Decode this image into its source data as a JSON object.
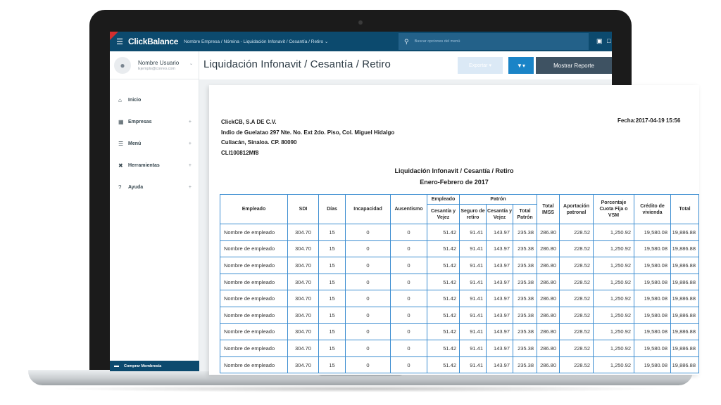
{
  "topbar": {
    "brand": "ClickBalance",
    "breadcrumb": "Nombre Empresa / Nómina - Liquidación Infonavit / Cesantía / Retiro",
    "search_placeholder": "Buscar opciones del menú"
  },
  "sidebar": {
    "user_name": "Nombre Usuario",
    "user_email": "Ejemplo@correo.com",
    "items": [
      {
        "label": "Inicio",
        "icon": "home-icon",
        "expandable": false
      },
      {
        "label": "Empresas",
        "icon": "building-icon",
        "expandable": true
      },
      {
        "label": "Menú",
        "icon": "list-icon",
        "expandable": true
      },
      {
        "label": "Herramientas",
        "icon": "tools-icon",
        "expandable": true
      },
      {
        "label": "Ayuda",
        "icon": "help-icon",
        "expandable": true
      }
    ],
    "membership_label": "Comprar Membresía"
  },
  "header": {
    "title": "Liquidación Infonavit / Cesantía / Retiro",
    "export_label": "Exportar",
    "show_report_label": "Mostrar Reporte"
  },
  "report": {
    "company_lines": [
      "ClickCB, S.A DE C.V.",
      "Indio de Guelatao 297 Nte. No. Ext 2do. Piso, Col. Miguel Hidalgo",
      "Culiacán, Sinaloa. CP. 80090",
      "CLI100812Mf8"
    ],
    "fecha": "Fecha:2017-04-19 15:56",
    "title": "Liquidación Infonavit / Cesantía / Retiro",
    "period": "Enero-Febrero de 2017",
    "group_headers": {
      "empleado": "Empleado",
      "patron": "Patrón"
    },
    "columns": {
      "empleado": "Empleado",
      "sdi": "SDI",
      "dias": "Días",
      "incapacidad": "Incapacidad",
      "ausentismo": "Ausentismo",
      "emp_cesantia": "Cesantía y Vejez",
      "pat_seguro": "Seguro de retiro",
      "pat_cesantia": "Cesantía y Vejez",
      "pat_total": "Total Patrón",
      "total_imss": "Total IMSS",
      "aportacion": "Aportación patronal",
      "porcentaje": "Porcentaje Cuota Fija o VSM",
      "credito": "Crédito de vivienda",
      "total": "Total"
    },
    "rows": [
      {
        "empleado": "Nombre de empleado",
        "sdi": "304.70",
        "dias": "15",
        "incapacidad": "0",
        "ausentismo": "0",
        "emp_cesantia": "51.42",
        "pat_seguro": "91.41",
        "pat_cesantia": "143.97",
        "pat_total": "235.38",
        "total_imss": "286.80",
        "aportacion": "228.52",
        "porcentaje": "1,250.92",
        "credito": "19,580.08",
        "total": "19,886.88"
      },
      {
        "empleado": "Nombre de empleado",
        "sdi": "304.70",
        "dias": "15",
        "incapacidad": "0",
        "ausentismo": "0",
        "emp_cesantia": "51.42",
        "pat_seguro": "91.41",
        "pat_cesantia": "143.97",
        "pat_total": "235.38",
        "total_imss": "286.80",
        "aportacion": "228.52",
        "porcentaje": "1,250.92",
        "credito": "19,580.08",
        "total": "19,886.88"
      },
      {
        "empleado": "Nombre de empleado",
        "sdi": "304.70",
        "dias": "15",
        "incapacidad": "0",
        "ausentismo": "0",
        "emp_cesantia": "51.42",
        "pat_seguro": "91.41",
        "pat_cesantia": "143.97",
        "pat_total": "235.38",
        "total_imss": "286.80",
        "aportacion": "228.52",
        "porcentaje": "1,250.92",
        "credito": "19,580.08",
        "total": "19,886.88"
      },
      {
        "empleado": "Nombre de empleado",
        "sdi": "304.70",
        "dias": "15",
        "incapacidad": "0",
        "ausentismo": "0",
        "emp_cesantia": "51.42",
        "pat_seguro": "91.41",
        "pat_cesantia": "143.97",
        "pat_total": "235.38",
        "total_imss": "286.80",
        "aportacion": "228.52",
        "porcentaje": "1,250.92",
        "credito": "19,580.08",
        "total": "19,886.88"
      },
      {
        "empleado": "Nombre de empleado",
        "sdi": "304.70",
        "dias": "15",
        "incapacidad": "0",
        "ausentismo": "0",
        "emp_cesantia": "51.42",
        "pat_seguro": "91.41",
        "pat_cesantia": "143.97",
        "pat_total": "235.38",
        "total_imss": "286.80",
        "aportacion": "228.52",
        "porcentaje": "1,250.92",
        "credito": "19,580.08",
        "total": "19,886.88"
      },
      {
        "empleado": "Nombre de empleado",
        "sdi": "304.70",
        "dias": "15",
        "incapacidad": "0",
        "ausentismo": "0",
        "emp_cesantia": "51.42",
        "pat_seguro": "91.41",
        "pat_cesantia": "143.97",
        "pat_total": "235.38",
        "total_imss": "286.80",
        "aportacion": "228.52",
        "porcentaje": "1,250.92",
        "credito": "19,580.08",
        "total": "19,886.88"
      },
      {
        "empleado": "Nombre de empleado",
        "sdi": "304.70",
        "dias": "15",
        "incapacidad": "0",
        "ausentismo": "0",
        "emp_cesantia": "51.42",
        "pat_seguro": "91.41",
        "pat_cesantia": "143.97",
        "pat_total": "235.38",
        "total_imss": "286.80",
        "aportacion": "228.52",
        "porcentaje": "1,250.92",
        "credito": "19,580.08",
        "total": "19,886.88"
      },
      {
        "empleado": "Nombre de empleado",
        "sdi": "304.70",
        "dias": "15",
        "incapacidad": "0",
        "ausentismo": "0",
        "emp_cesantia": "51.42",
        "pat_seguro": "91.41",
        "pat_cesantia": "143.97",
        "pat_total": "235.38",
        "total_imss": "286.80",
        "aportacion": "228.52",
        "porcentaje": "1,250.92",
        "credito": "19,580.08",
        "total": "19,886.88"
      },
      {
        "empleado": "Nombre de empleado",
        "sdi": "304.70",
        "dias": "15",
        "incapacidad": "0",
        "ausentismo": "0",
        "emp_cesantia": "51.42",
        "pat_seguro": "91.41",
        "pat_cesantia": "143.97",
        "pat_total": "235.38",
        "total_imss": "286.80",
        "aportacion": "228.52",
        "porcentaje": "1,250.92",
        "credito": "19,580.08",
        "total": "19,886.88"
      }
    ]
  },
  "colors": {
    "topbar": "#0c4a6e",
    "accent": "#1a84c7",
    "table_border": "#3d8ed1",
    "report_button": "#3e5262"
  }
}
